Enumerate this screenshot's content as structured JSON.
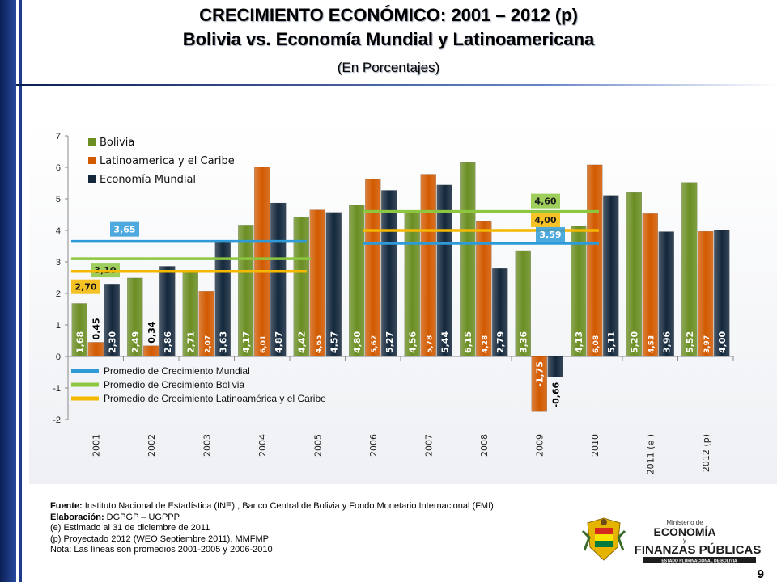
{
  "header": {
    "title_line1": "CRECIMIENTO ECONÓMICO: 2001 – 2012 (p)",
    "title_line2": "Bolivia vs. Economía Mundial y Latinoamericana",
    "subtitle": "(En Porcentajes)"
  },
  "colors": {
    "bolivia": "#6b8e23",
    "latam": "#d25a00",
    "mundial": "#14283c",
    "avg_mundial": "#2e9ad8",
    "avg_bolivia": "#8dc63f",
    "avg_latam": "#f5b800"
  },
  "chart_data": {
    "type": "bar",
    "categories": [
      "2001",
      "2002",
      "2003",
      "2004",
      "2005",
      "2006",
      "2007",
      "2008",
      "2009",
      "2010",
      "2011 (e )",
      "2012 (p)"
    ],
    "series": [
      {
        "name": "Bolivia",
        "values": [
          1.68,
          2.49,
          2.71,
          4.17,
          4.42,
          4.8,
          4.56,
          6.15,
          3.36,
          4.13,
          5.2,
          5.52
        ],
        "labels": [
          "1,68",
          "2,49",
          "2,71",
          "4,17",
          "4,42",
          "4,80",
          "4,56",
          "6,15",
          "3,36",
          "4,13",
          "5,20",
          "5,52"
        ]
      },
      {
        "name": "Latinoamerica y el Caribe",
        "values": [
          0.45,
          0.34,
          2.07,
          6.01,
          4.65,
          5.62,
          5.78,
          4.28,
          -1.75,
          6.08,
          4.53,
          3.97
        ],
        "labels": [
          "0,45",
          "0,34",
          "2,07",
          "6,01",
          "4,65",
          "5,62",
          "5,78",
          "4,28",
          "-1,75",
          "6,08",
          "4,53",
          "3,97"
        ]
      },
      {
        "name": "Economía Mundial",
        "values": [
          2.3,
          2.86,
          3.63,
          4.87,
          4.57,
          5.27,
          5.44,
          2.79,
          -0.66,
          5.11,
          3.96,
          4.0
        ],
        "labels": [
          "2,30",
          "2,86",
          "3,63",
          "4,87",
          "4,57",
          "5,27",
          "5,44",
          "2,79",
          "-0,66",
          "5,11",
          "3,96",
          "4,00"
        ]
      }
    ],
    "y_ticks": [
      "7",
      "6",
      "5",
      "4",
      "3",
      "2",
      "1",
      "0",
      "-1",
      "-2"
    ],
    "ylim": [
      -2,
      7
    ],
    "legend_placement": "top-left",
    "averages": [
      {
        "name": "Promedio de Crecimiento Mundial",
        "period": "2001-2005",
        "value": 3.65,
        "label": "3,65"
      },
      {
        "name": "Promedio de Crecimiento Bolivia",
        "period": "2001-2005",
        "value": 3.1,
        "label": "3,10"
      },
      {
        "name": "Promedio de Crecimiento Latinoamérica y el Caribe",
        "period": "2001-2005",
        "value": 2.7,
        "label": "2,70"
      },
      {
        "name": "Promedio de Crecimiento Bolivia",
        "period": "2006-2010",
        "value": 4.6,
        "label": "4,60"
      },
      {
        "name": "Promedio de Crecimiento Latinoamérica y el Caribe",
        "period": "2006-2010",
        "value": 4.0,
        "label": "4,00"
      },
      {
        "name": "Promedio de Crecimiento Mundial",
        "period": "2006-2010",
        "value": 3.59,
        "label": "3,59"
      }
    ],
    "avg_legend": [
      "Promedio de Crecimiento Mundial",
      "Promedio de Crecimiento Bolivia",
      "Promedio de Crecimiento Latinoamérica  y el Caribe"
    ]
  },
  "notes": {
    "fuente_label": "Fuente:",
    "fuente_text": " Instituto Nacional de Estadística (INE) , Banco Central de Bolivia y Fondo Monetario Internacional  (FMI)",
    "elaboracion_label": "Elaboración:",
    "elaboracion_text": " DGPGP – UGPPP",
    "line_e": "(e) Estimado al 31 de diciembre de 2011",
    "line_p": "(p) Proyectado 2012 (WEO  Septiembre 2011), MMFMP",
    "line_nota": "Nota: Las líneas son promedios 2001-2005 y 2006-2010"
  },
  "logo": {
    "line1": "Ministerio de",
    "line2": "ECONOMÍA",
    "line3": "y",
    "line4": "FINANZAS PÚBLICAS",
    "line5": "ESTADO PLURINACIONAL DE BOLIVIA"
  },
  "page_number": "9"
}
